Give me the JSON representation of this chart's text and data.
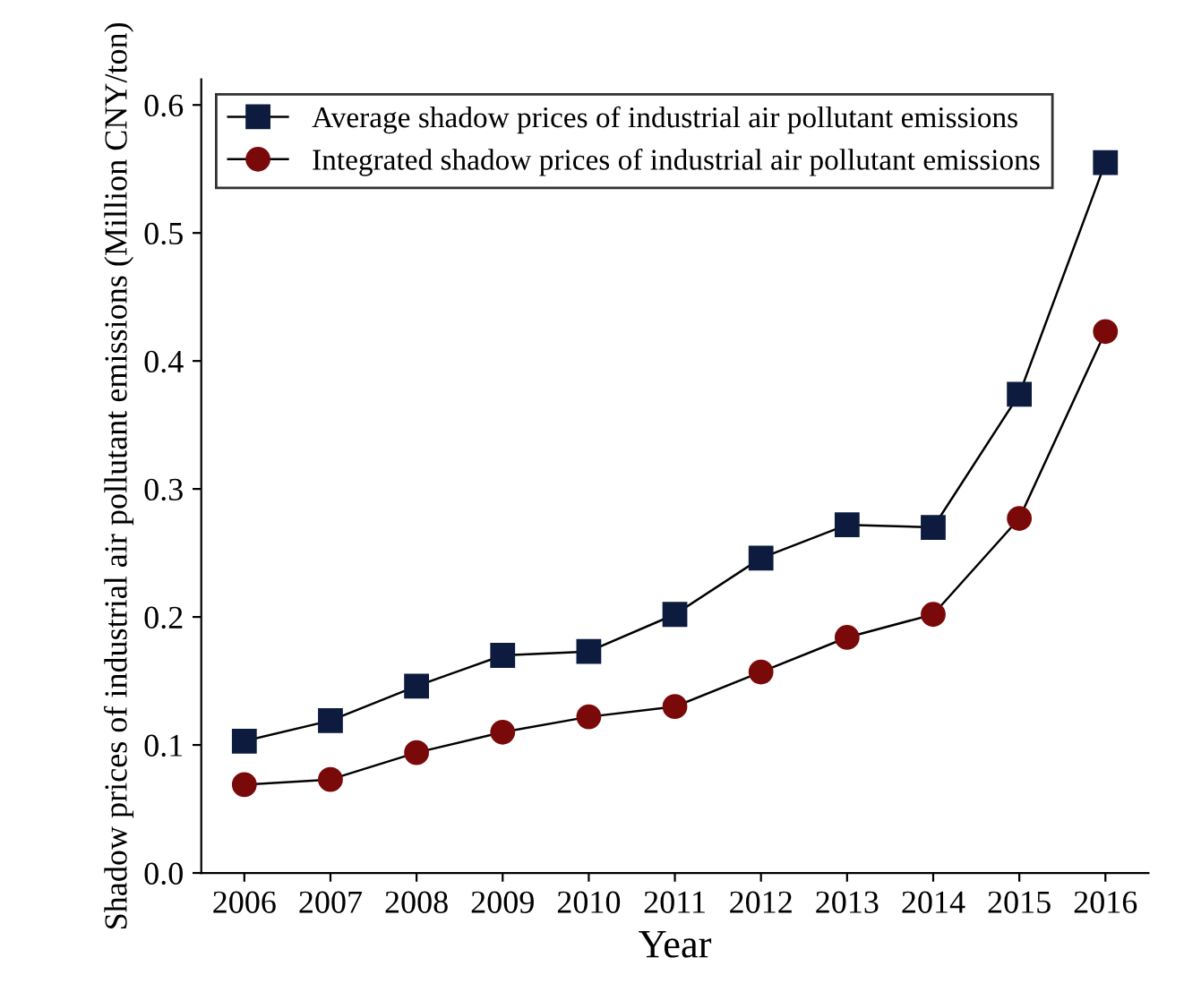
{
  "chart_data": {
    "type": "line",
    "xlabel": "Year",
    "ylabel": "Shadow prices of industrial air pollutant emissions (Million CNY/ton)",
    "x": [
      2006,
      2007,
      2008,
      2009,
      2010,
      2011,
      2012,
      2013,
      2014,
      2015,
      2016
    ],
    "series": [
      {
        "name": "Average shadow prices of industrial air pollutant emissions",
        "color": "#0d1b3e",
        "marker": "square",
        "values": [
          0.103,
          0.119,
          0.146,
          0.17,
          0.173,
          0.202,
          0.246,
          0.272,
          0.27,
          0.374,
          0.555
        ]
      },
      {
        "name": "Integrated shadow prices of industrial air pollutant emissions",
        "color": "#7a0a0a",
        "marker": "circle",
        "values": [
          0.069,
          0.073,
          0.094,
          0.11,
          0.122,
          0.13,
          0.157,
          0.184,
          0.202,
          0.277,
          0.423
        ]
      }
    ],
    "xlim": [
      2005.5,
      2016.5
    ],
    "xticks": [
      2006,
      2007,
      2008,
      2009,
      2010,
      2011,
      2012,
      2013,
      2014,
      2015,
      2016
    ],
    "ylim": [
      0,
      0.62
    ],
    "yticks": [
      {
        "value": 0,
        "label": "0.0"
      },
      0.1,
      0.2,
      0.3,
      0.4,
      0.5,
      0.6
    ],
    "grid": false,
    "legend": "top left",
    "line_style": "solid"
  }
}
